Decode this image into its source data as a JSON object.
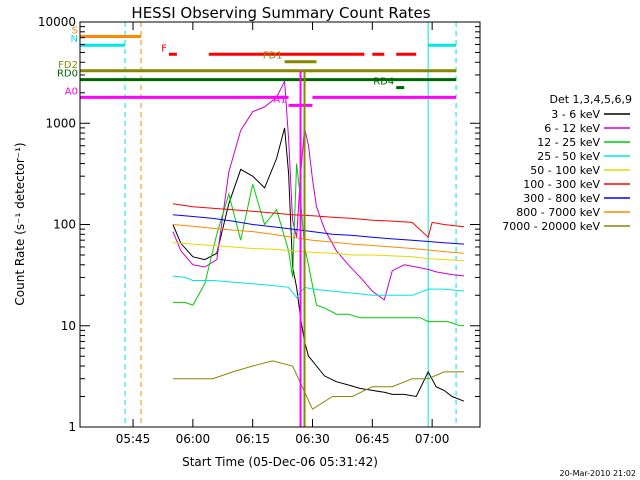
{
  "chart_data": {
    "type": "line",
    "title": "HESSI Observing Summary Count Rates",
    "xlabel": "Start Time (05-Dec-06 05:31:42)",
    "ylabel": "Count Rate (s⁻¹ detector⁻¹)",
    "y_scale": "log",
    "ylim": [
      1,
      10000
    ],
    "xlim": [
      "05:31:42",
      "07:12:00"
    ],
    "x_ticks": [
      "05:45",
      "06:00",
      "06:15",
      "06:30",
      "06:45",
      "07:00"
    ],
    "y_ticks": [
      "1",
      "10",
      "100",
      "1000",
      "10000"
    ],
    "legend_title": "Det 1,3,4,5,6,9",
    "legend_position": "right",
    "series": [
      {
        "name": "3 - 6 keV",
        "color": "#000000",
        "x": [
          "05:55",
          "05:57",
          "06:00",
          "06:03",
          "06:06",
          "06:09",
          "06:12",
          "06:15",
          "06:18",
          "06:21",
          "06:23",
          "06:24",
          "06:25",
          "06:26",
          "06:27",
          "06:28",
          "06:29",
          "06:30",
          "06:31",
          "06:33",
          "06:36",
          "06:39",
          "06:42",
          "06:45",
          "06:48",
          "06:50",
          "06:53",
          "06:56",
          "06:59",
          "07:01",
          "07:03",
          "07:05",
          "07:08"
        ],
        "y": [
          100,
          65,
          48,
          45,
          52,
          160,
          350,
          300,
          230,
          450,
          900,
          320,
          38,
          24,
          12,
          7,
          5,
          4.5,
          4,
          3.2,
          2.8,
          2.6,
          2.4,
          2.3,
          2.2,
          2.1,
          2.1,
          2.0,
          3.5,
          2.5,
          2.3,
          2.0,
          1.8
        ]
      },
      {
        "name": "6 - 12 keV",
        "color": "#cc00cc",
        "x": [
          "05:55",
          "05:57",
          "06:00",
          "06:03",
          "06:06",
          "06:09",
          "06:12",
          "06:15",
          "06:18",
          "06:21",
          "06:23",
          "06:24",
          "06:25",
          "06:26",
          "06:27",
          "06:28",
          "06:29",
          "06:30",
          "06:31",
          "06:33",
          "06:36",
          "06:39",
          "06:42",
          "06:45",
          "06:48",
          "06:50",
          "06:53",
          "06:56",
          "06:59",
          "07:01",
          "07:03",
          "07:05",
          "07:08"
        ],
        "y": [
          85,
          55,
          40,
          38,
          45,
          330,
          850,
          1300,
          1450,
          1800,
          2600,
          700,
          110,
          75,
          300,
          900,
          600,
          280,
          150,
          90,
          55,
          40,
          30,
          22,
          18,
          35,
          40,
          38,
          36,
          34,
          33,
          32,
          31
        ]
      },
      {
        "name": "12 - 25 keV",
        "color": "#00cc00",
        "x": [
          "05:55",
          "05:58",
          "06:00",
          "06:03",
          "06:06",
          "06:09",
          "06:12",
          "06:15",
          "06:18",
          "06:21",
          "06:24",
          "06:25",
          "06:26",
          "06:27",
          "06:28",
          "06:29",
          "06:30",
          "06:31",
          "06:33",
          "06:36",
          "06:39",
          "06:42",
          "06:45",
          "06:48",
          "06:51",
          "06:54",
          "06:57",
          "06:59",
          "07:01",
          "07:04",
          "07:07",
          "07:08"
        ],
        "y": [
          17,
          17,
          16,
          26,
          80,
          200,
          70,
          250,
          100,
          140,
          55,
          30,
          400,
          180,
          60,
          40,
          25,
          16,
          15,
          13,
          13,
          12,
          12,
          12,
          12,
          12,
          12,
          11,
          11,
          11,
          10,
          10
        ]
      },
      {
        "name": "25 - 50 keV",
        "color": "#00e5e5",
        "x": [
          "05:55",
          "05:58",
          "06:00",
          "06:05",
          "06:10",
          "06:15",
          "06:20",
          "06:24",
          "06:26",
          "06:28",
          "06:30",
          "06:35",
          "06:40",
          "06:45",
          "06:50",
          "06:55",
          "06:59",
          "07:03",
          "07:08"
        ],
        "y": [
          31,
          30,
          28,
          28,
          27,
          26,
          25,
          24,
          19,
          24,
          23,
          22,
          21,
          20,
          20,
          20,
          23,
          23,
          22
        ]
      },
      {
        "name": "50 - 100 keV",
        "color": "#e6d800",
        "x": [
          "05:55",
          "06:00",
          "06:05",
          "06:10",
          "06:15",
          "06:20",
          "06:25",
          "06:30",
          "06:35",
          "06:40",
          "06:45",
          "06:50",
          "06:55",
          "06:59",
          "07:03",
          "07:08"
        ],
        "y": [
          66,
          64,
          62,
          60,
          58,
          57,
          55,
          53,
          52,
          50,
          50,
          49,
          48,
          46,
          45,
          44
        ]
      },
      {
        "name": "100 - 300 keV",
        "color": "#ff0000",
        "x": [
          "05:55",
          "06:00",
          "06:05",
          "06:10",
          "06:15",
          "06:20",
          "06:25",
          "06:30",
          "06:35",
          "06:40",
          "06:45",
          "06:50",
          "06:55",
          "06:59",
          "07:00",
          "07:03",
          "07:08"
        ],
        "y": [
          160,
          150,
          145,
          140,
          135,
          130,
          125,
          122,
          118,
          115,
          110,
          108,
          105,
          75,
          105,
          100,
          95
        ]
      },
      {
        "name": "300 - 800 keV",
        "color": "#0000ff",
        "x": [
          "05:55",
          "06:00",
          "06:05",
          "06:10",
          "06:15",
          "06:20",
          "06:25",
          "06:30",
          "06:35",
          "06:40",
          "06:45",
          "06:50",
          "06:55",
          "06:59",
          "07:03",
          "07:08"
        ],
        "y": [
          125,
          120,
          115,
          108,
          100,
          95,
          90,
          85,
          80,
          78,
          75,
          72,
          70,
          68,
          66,
          64
        ]
      },
      {
        "name": "800 - 7000 keV",
        "color": "#ff8800",
        "x": [
          "05:55",
          "06:00",
          "06:05",
          "06:10",
          "06:15",
          "06:20",
          "06:25",
          "06:30",
          "06:35",
          "06:40",
          "06:45",
          "06:50",
          "06:55",
          "06:59",
          "07:03",
          "07:08"
        ],
        "y": [
          100,
          96,
          92,
          88,
          85,
          80,
          75,
          70,
          67,
          64,
          62,
          60,
          58,
          56,
          54,
          52
        ]
      },
      {
        "name": "7000 - 20000 keV",
        "color": "#888800",
        "x": [
          "05:55",
          "06:00",
          "06:05",
          "06:10",
          "06:15",
          "06:20",
          "06:25",
          "06:30",
          "06:35",
          "06:40",
          "06:45",
          "06:50",
          "06:55",
          "06:59",
          "07:03",
          "07:08"
        ],
        "y": [
          3,
          3,
          3,
          3.5,
          4,
          4.5,
          4,
          1.5,
          2,
          2,
          2.5,
          2.5,
          3,
          3,
          3.5,
          3.5
        ]
      }
    ],
    "vertical_lines": [
      {
        "time": "05:43",
        "color": "#00e5e5",
        "style": "dashed"
      },
      {
        "time": "05:47",
        "color": "#ff8800",
        "style": "dashed"
      },
      {
        "time": "06:59",
        "color": "#00e5e5",
        "style": "solid"
      },
      {
        "time": "07:06",
        "color": "#00e5e5",
        "style": "dashed"
      }
    ],
    "flag_bars": [
      {
        "label": "S",
        "color": "#ff8800",
        "segments": [
          [
            "05:31:42",
            "05:47"
          ]
        ],
        "y": 7200
      },
      {
        "label": "N",
        "color": "#00e5e5",
        "segments": [
          [
            "05:31:42",
            "05:43"
          ],
          [
            "06:59",
            "07:06"
          ]
        ],
        "y": 5900
      },
      {
        "label": "F",
        "color": "#ff0000",
        "segments": [
          [
            "05:54",
            "05:56"
          ],
          [
            "06:04",
            "06:43"
          ],
          [
            "06:45",
            "06:48"
          ],
          [
            "06:51",
            "06:56"
          ]
        ],
        "y": 4800
      },
      {
        "label": "FD1",
        "color": "#888800",
        "segments": [
          [
            "06:23",
            "06:31"
          ]
        ],
        "y": 4050
      },
      {
        "label": "FD2",
        "color": "#888800",
        "segments": [
          [
            "05:31:42",
            "07:06"
          ]
        ],
        "y": 3300
      },
      {
        "label": "RD0",
        "color": "#006600",
        "segments": [
          [
            "05:31:42",
            "07:06"
          ]
        ],
        "y": 2700
      },
      {
        "label": "RD4",
        "color": "#006600",
        "segments": [
          [
            "06:51",
            "06:53"
          ]
        ],
        "y": 2250
      },
      {
        "label": "A0",
        "color": "#ff00ff",
        "segments": [
          [
            "05:31:42",
            "06:24"
          ],
          [
            "06:30",
            "07:06"
          ]
        ],
        "y": 1800
      },
      {
        "label": "A1",
        "color": "#ff00ff",
        "segments": [
          [
            "06:24",
            "06:30"
          ]
        ],
        "y": 1500
      }
    ],
    "markers": [
      {
        "time": "06:27",
        "color": "#ff00ff"
      },
      {
        "time": "06:28",
        "color": "#888800"
      }
    ],
    "footer": "20-Mar-2010 21:02"
  }
}
